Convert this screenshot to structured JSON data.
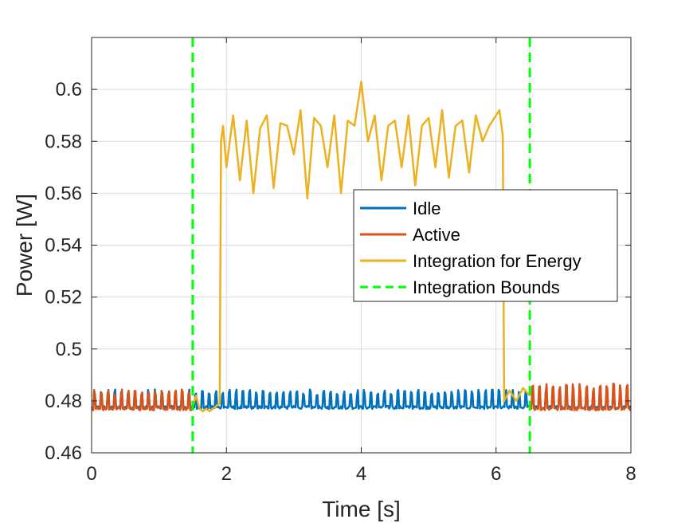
{
  "chart_data": {
    "type": "line",
    "title": "",
    "xlabel": "Time [s]",
    "ylabel": "Power [W]",
    "xlim": [
      0,
      8
    ],
    "ylim": [
      0.46,
      0.62
    ],
    "x_ticks": [
      0,
      2,
      4,
      6,
      8
    ],
    "x_tick_labels": [
      "0",
      "2",
      "4",
      "6",
      "8"
    ],
    "y_ticks": [
      0.46,
      0.48,
      0.5,
      0.52,
      0.54,
      0.56,
      0.58,
      0.6
    ],
    "y_tick_labels": [
      "0.46",
      "0.48",
      "0.5",
      "0.52",
      "0.54",
      "0.56",
      "0.58",
      "0.6"
    ],
    "grid": true,
    "legend_position": "right-center",
    "series": [
      {
        "name": "Idle",
        "color": "#0072BD",
        "style": "solid",
        "baseline": 0.4775,
        "spike_peak": 0.4835,
        "spike_period_s": 0.1,
        "x": [
          0,
          8
        ]
      },
      {
        "name": "Active",
        "color": "#D95319",
        "style": "solid",
        "segments": [
          {
            "x": [
              0,
              1.5
            ],
            "baseline": 0.477,
            "spike_peak": 0.4835,
            "spike_period_s": 0.1
          },
          {
            "x": [
              6.5,
              8
            ],
            "baseline": 0.477,
            "spike_peak": 0.4855,
            "spike_period_s": 0.1
          }
        ]
      },
      {
        "name": "Integration for Energy",
        "color": "#EDB120",
        "style": "solid",
        "x": [
          1.5,
          1.55,
          1.6,
          1.65,
          1.7,
          1.75,
          1.8,
          1.85,
          1.9,
          1.92,
          1.95,
          2.0,
          2.1,
          2.2,
          2.3,
          2.4,
          2.5,
          2.6,
          2.7,
          2.8,
          2.9,
          3.0,
          3.1,
          3.2,
          3.3,
          3.4,
          3.5,
          3.6,
          3.7,
          3.8,
          3.9,
          4.0,
          4.1,
          4.2,
          4.3,
          4.4,
          4.5,
          4.6,
          4.7,
          4.8,
          4.9,
          5.0,
          5.1,
          5.2,
          5.3,
          5.4,
          5.5,
          5.6,
          5.7,
          5.8,
          5.9,
          6.0,
          6.05,
          6.1,
          6.12,
          6.2,
          6.3,
          6.4,
          6.5
        ],
        "y": [
          0.478,
          0.482,
          0.477,
          0.476,
          0.477,
          0.476,
          0.477,
          0.478,
          0.479,
          0.58,
          0.586,
          0.57,
          0.59,
          0.565,
          0.588,
          0.56,
          0.585,
          0.59,
          0.562,
          0.587,
          0.586,
          0.575,
          0.592,
          0.558,
          0.589,
          0.586,
          0.57,
          0.59,
          0.56,
          0.588,
          0.586,
          0.603,
          0.58,
          0.59,
          0.565,
          0.586,
          0.588,
          0.57,
          0.59,
          0.563,
          0.586,
          0.589,
          0.57,
          0.592,
          0.566,
          0.586,
          0.588,
          0.568,
          0.59,
          0.58,
          0.586,
          0.59,
          0.592,
          0.582,
          0.48,
          0.484,
          0.48,
          0.485,
          0.482
        ]
      },
      {
        "name": "Integration Bounds",
        "color": "#00FF00",
        "style": "dashed",
        "vertical_lines_x": [
          1.5,
          6.5
        ]
      }
    ]
  }
}
